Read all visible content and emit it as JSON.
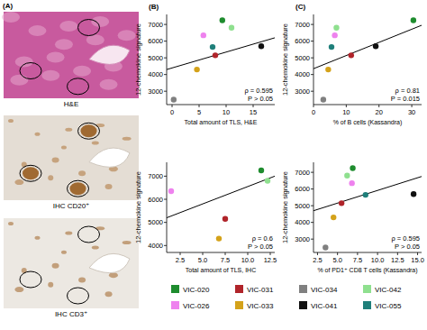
{
  "panel_a": {
    "label": "(A)",
    "images": [
      {
        "label": "H&E"
      },
      {
        "label": "IHC CD20⁺"
      },
      {
        "label": "IHC CD3⁺"
      }
    ]
  },
  "samples": [
    {
      "name": "VIC-020",
      "color": "#1e8c2e"
    },
    {
      "name": "VIC-031",
      "color": "#b0242a"
    },
    {
      "name": "VIC-034",
      "color": "#808080"
    },
    {
      "name": "VIC-042",
      "color": "#8fe08f"
    },
    {
      "name": "VIC-026",
      "color": "#ee82ee"
    },
    {
      "name": "VIC-033",
      "color": "#d4a21a"
    },
    {
      "name": "VIC-041",
      "color": "#111111"
    },
    {
      "name": "VIC-055",
      "color": "#1f7f7a"
    }
  ],
  "chart_data": [
    {
      "type": "scatter",
      "panel_label": "(B)",
      "x_label": "Total amount of TLS, H&E",
      "y_label": "12-chemokine signature",
      "x": [
        9.3,
        8,
        0.3,
        11,
        5.8,
        4.6,
        16.5,
        7.5
      ],
      "values": [
        7250,
        5150,
        2500,
        6800,
        6350,
        4300,
        5700,
        5650
      ],
      "xlim": [
        -1,
        19
      ],
      "ylim": [
        2200,
        7600
      ],
      "xticks": [
        0,
        5,
        10,
        15
      ],
      "yticks": [
        3000,
        4000,
        5000,
        6000,
        7000
      ],
      "annotations": [
        "ρ = 0.595",
        "P > 0.05"
      ],
      "trend": {
        "x": [
          -1,
          19
        ],
        "values": [
          4300,
          6200
        ]
      }
    },
    {
      "type": "scatter",
      "x_label": "Total amount of TLS, IHC",
      "y_label": "12-chemokine signature",
      "x": [
        11.5,
        7.5,
        null,
        12.2,
        1.5,
        6.8,
        null,
        null
      ],
      "values": [
        7250,
        5150,
        null,
        6800,
        6350,
        4300,
        null,
        null
      ],
      "xlim": [
        1,
        13
      ],
      "ylim": [
        3700,
        7600
      ],
      "xticks": [
        {
          "value": 2.5,
          "label": "2.5"
        },
        {
          "value": 5,
          "label": "5.0"
        },
        {
          "value": 7.5,
          "label": "7.5"
        },
        {
          "value": 10,
          "label": "10.0"
        },
        {
          "value": 12.5,
          "label": "12.5"
        }
      ],
      "yticks": [
        4000,
        5000,
        6000,
        7000
      ],
      "annotations": [
        "ρ = 0.6",
        "P > 0.05"
      ],
      "trend": {
        "x": [
          1,
          13
        ],
        "values": [
          5200,
          7000
        ]
      }
    },
    {
      "type": "scatter",
      "panel_label": "(C)",
      "x_label": "% of B cells (Kassandra)",
      "y_label": "12-chemokine signature",
      "x": [
        30.5,
        11.5,
        3,
        7,
        6.5,
        4.5,
        19,
        5.5
      ],
      "values": [
        7250,
        5150,
        2500,
        6800,
        6350,
        4300,
        5700,
        5650
      ],
      "xlim": [
        0,
        33
      ],
      "ylim": [
        2200,
        7600
      ],
      "xticks": [
        0,
        10,
        20,
        30
      ],
      "yticks": [
        3000,
        4000,
        5000,
        6000,
        7000
      ],
      "annotations": [
        "ρ = 0.81",
        "P = 0.015"
      ],
      "trend": {
        "x": [
          0,
          33
        ],
        "values": [
          4350,
          6950
        ]
      }
    },
    {
      "type": "scatter",
      "x_label": "% of PD1⁺ CD8 T cells (Kassandra)",
      "y_label": "12-chemokine signature",
      "x": [
        6.9,
        5.5,
        3.5,
        6.2,
        6.8,
        4.5,
        14.5,
        8.5
      ],
      "values": [
        7250,
        5150,
        2500,
        6800,
        6350,
        4300,
        5700,
        5650
      ],
      "xlim": [
        2,
        15.5
      ],
      "ylim": [
        2200,
        7600
      ],
      "xticks": [
        {
          "value": 2.5,
          "label": "2.5"
        },
        {
          "value": 5,
          "label": "5.0"
        },
        {
          "value": 7.5,
          "label": "7.5"
        },
        {
          "value": 10,
          "label": "10.0"
        },
        {
          "value": 12.5,
          "label": "12.5"
        },
        {
          "value": 15,
          "label": "15.0"
        }
      ],
      "yticks": [
        3000,
        4000,
        5000,
        6000,
        7000
      ],
      "annotations": [
        "ρ = 0.595",
        "P > 0.05"
      ],
      "trend": {
        "x": [
          2,
          15.5
        ],
        "values": [
          4700,
          6750
        ]
      }
    }
  ]
}
